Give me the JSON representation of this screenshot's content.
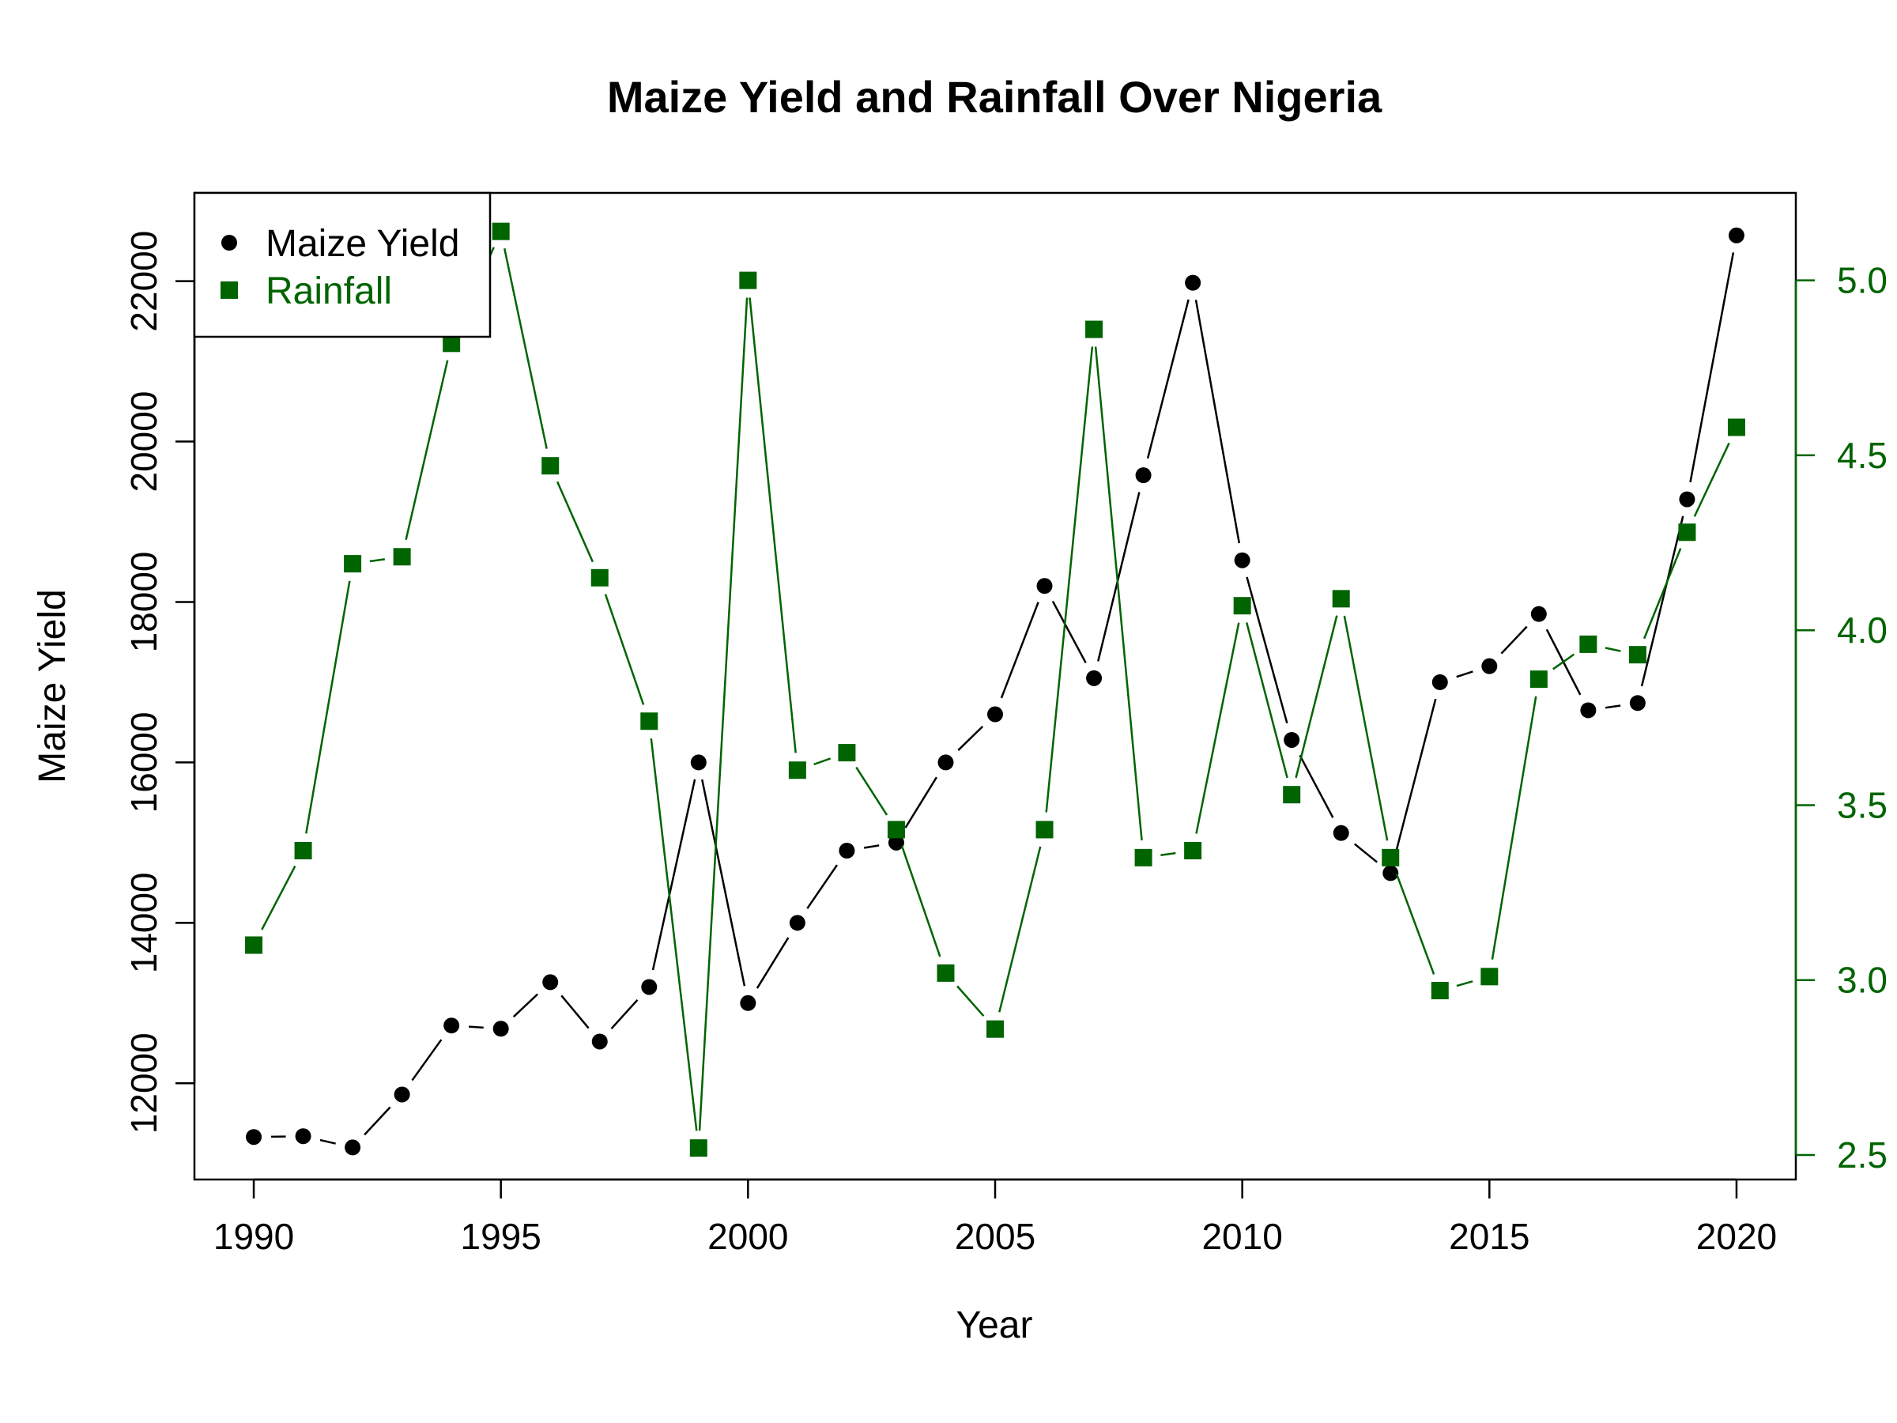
{
  "chart_data": {
    "type": "line",
    "title": "Maize Yield and Rainfall Over Nigeria",
    "xlabel": "Year",
    "ylabel": "Maize Yield",
    "ylabel_right": "",
    "x": [
      1990,
      1991,
      1992,
      1993,
      1994,
      1995,
      1996,
      1997,
      1998,
      1999,
      2000,
      2001,
      2002,
      2003,
      2004,
      2005,
      2006,
      2007,
      2008,
      2009,
      2010,
      2011,
      2012,
      2013,
      2014,
      2015,
      2016,
      2017,
      2018,
      2019,
      2020
    ],
    "xlim": [
      1988.8,
      2021.2
    ],
    "xticks": [
      1990,
      1995,
      2000,
      2005,
      2010,
      2015,
      2020
    ],
    "ylim": [
      10800,
      23100
    ],
    "yticks": [
      12000,
      14000,
      16000,
      18000,
      20000,
      22000
    ],
    "ylim_right": [
      2.43,
      5.25
    ],
    "yticks_right": [
      "2.5",
      "3.0",
      "3.5",
      "4.0",
      "4.5",
      "5.0"
    ],
    "legend_position": "top-left",
    "series": [
      {
        "name": "Maize Yield",
        "axis": "left",
        "marker": "circle",
        "color": "#000000",
        "values": [
          11330,
          11340,
          11200,
          11860,
          12720,
          12680,
          13260,
          12520,
          13200,
          16000,
          13000,
          14000,
          14900,
          15000,
          16000,
          16600,
          18200,
          17050,
          19580,
          21980,
          18520,
          16280,
          15120,
          14620,
          17000,
          17200,
          17850,
          16650,
          16740,
          19280,
          22570
        ]
      },
      {
        "name": "Rainfall",
        "axis": "right",
        "marker": "square",
        "color": "#006400",
        "values": [
          3.1,
          3.37,
          4.19,
          4.21,
          4.82,
          5.14,
          4.47,
          4.15,
          3.74,
          2.52,
          5.0,
          3.6,
          3.65,
          3.43,
          3.02,
          2.86,
          3.43,
          4.86,
          3.35,
          3.37,
          4.07,
          3.53,
          4.09,
          3.35,
          2.97,
          3.01,
          3.86,
          3.96,
          3.93,
          4.28,
          4.58
        ]
      }
    ]
  }
}
